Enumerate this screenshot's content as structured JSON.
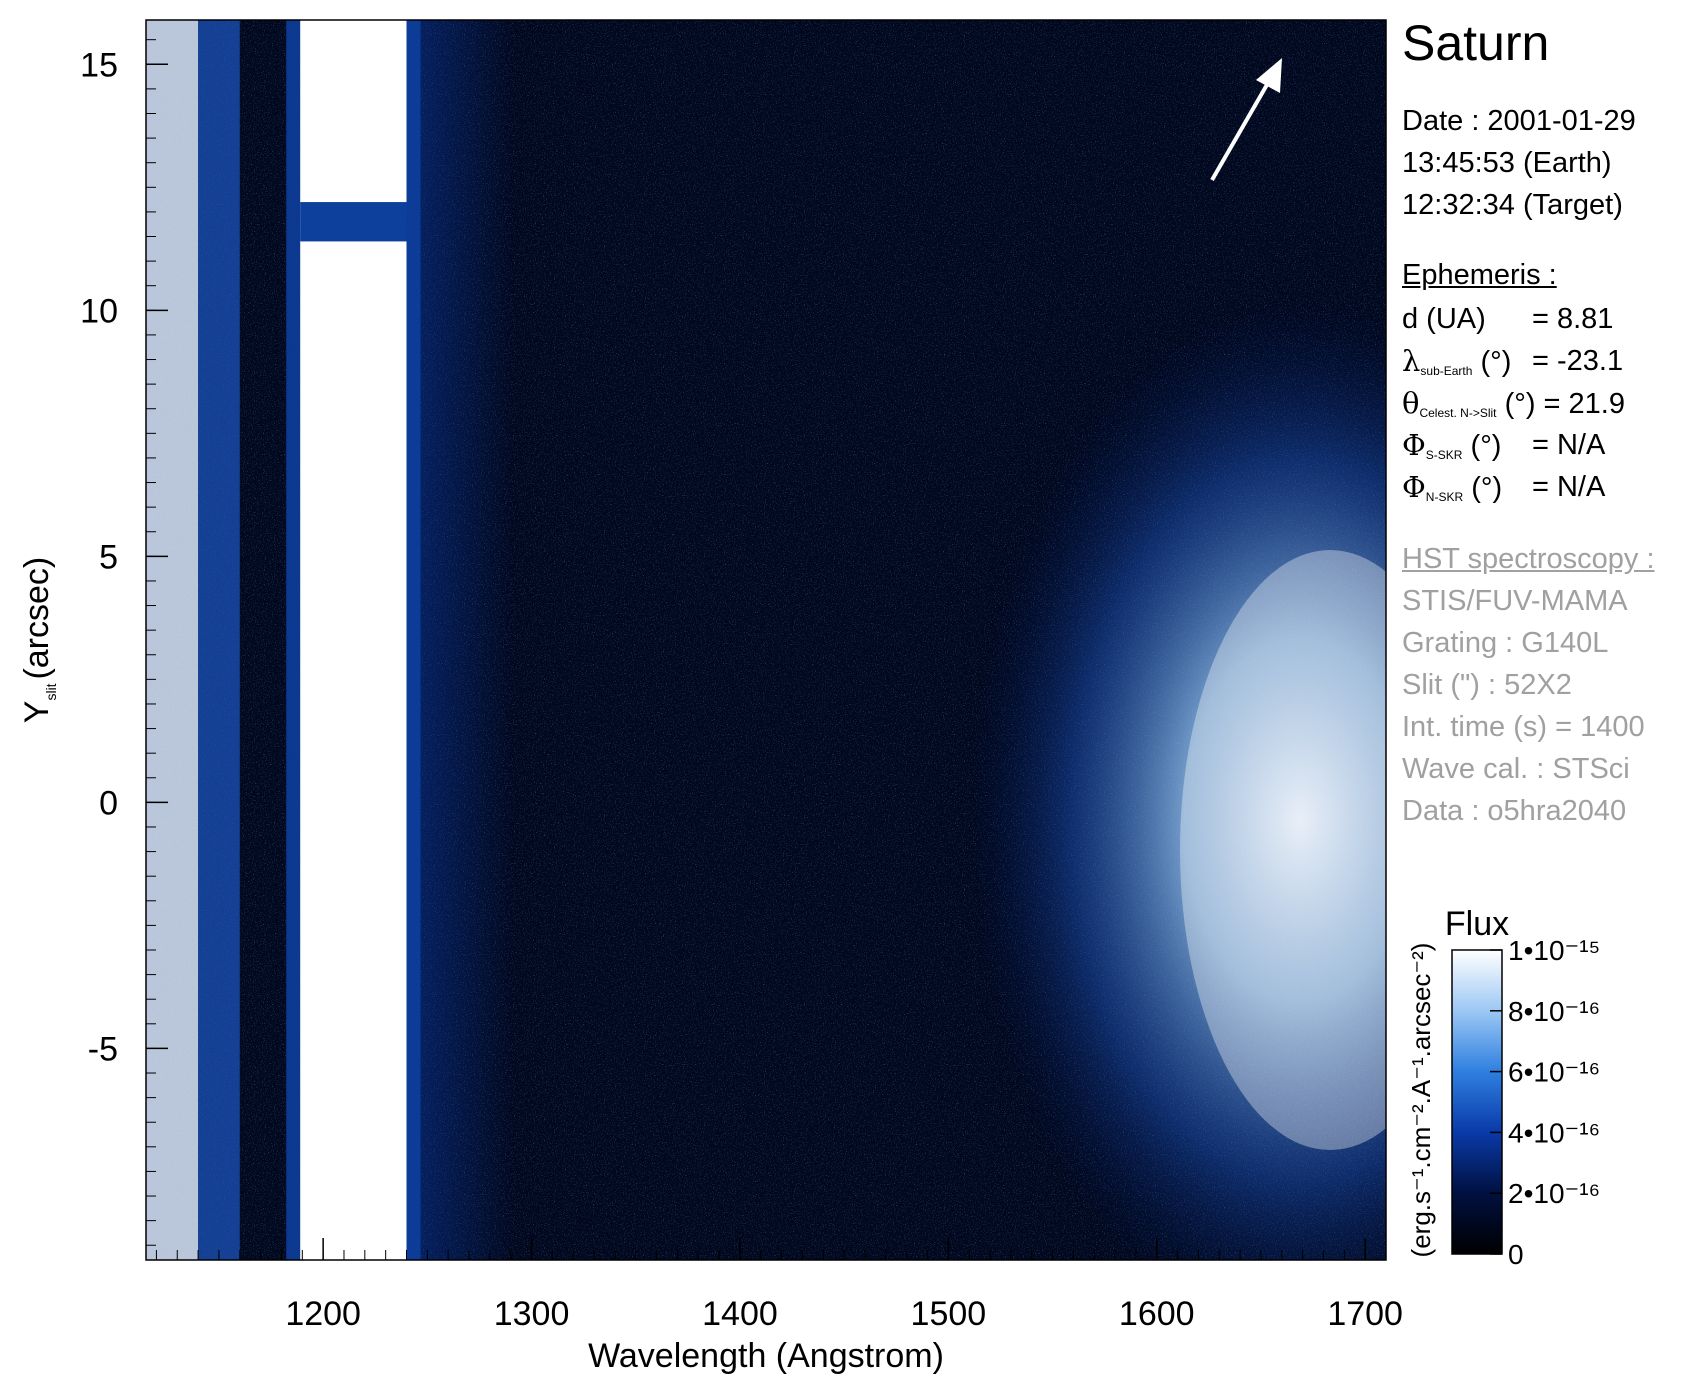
{
  "header": {
    "planet": "Saturn",
    "date_line": "Date : 2001-01-29",
    "earth_time": "13:45:53 (Earth)",
    "target_time": "12:32:34 (Target)"
  },
  "ephemeris": {
    "heading": "Ephemeris :",
    "d_label": "d (UA)",
    "d_value": "= 8.81",
    "lambda_symbol": "λ",
    "lambda_sub": "sub-Earth",
    "lambda_unit": "(°)",
    "lambda_value": "= -23.1",
    "theta_symbol": "θ",
    "theta_sub": "Celest. N->Slit",
    "theta_unit": "(°)",
    "theta_value": "= 21.9",
    "phi_s_symbol": "Φ",
    "phi_s_sub": "S-SKR",
    "phi_s_unit": "(°)",
    "phi_s_value": "= N/A",
    "phi_n_symbol": "Φ",
    "phi_n_sub": "N-SKR",
    "phi_n_unit": "(°)",
    "phi_n_value": "= N/A"
  },
  "spectroscopy": {
    "heading": "HST spectroscopy :",
    "instrument": "STIS/FUV-MAMA",
    "grating": "Grating : G140L",
    "slit": "Slit (\") : 52X2",
    "int_time": "Int. time (s) = 1400",
    "wave_cal": "Wave cal. : STSci",
    "data_id": "Data : o5hra2040"
  },
  "colorbar": {
    "title": "Flux",
    "unit_label": "(erg.s⁻¹.cm⁻².A⁻¹.arcsec⁻²)",
    "ticks": [
      {
        "value": 0,
        "label": "0"
      },
      {
        "value": 2e-16,
        "label": "2•10⁻¹⁶"
      },
      {
        "value": 4e-16,
        "label": "4•10⁻¹⁶"
      },
      {
        "value": 6e-16,
        "label": "6•10⁻¹⁶"
      },
      {
        "value": 8e-16,
        "label": "8•10⁻¹⁶"
      },
      {
        "value": 1e-15,
        "label": "1•10⁻¹⁵"
      }
    ],
    "colors": [
      "#000000",
      "#001040",
      "#0a3aa8",
      "#2f7fe0",
      "#9cc8f4",
      "#ffffff"
    ]
  },
  "chart_data": {
    "type": "heatmap",
    "title": "Saturn",
    "xlabel": "Wavelength (Angstrom)",
    "ylabel_main": "Y",
    "ylabel_sub": "slit",
    "ylabel_unit": "(arcsec)",
    "xlim": [
      1115,
      1710
    ],
    "ylim": [
      -9.3,
      15.9
    ],
    "x_ticks": [
      1200,
      1300,
      1400,
      1500,
      1600,
      1700
    ],
    "y_ticks": [
      -5,
      0,
      5,
      10,
      15
    ],
    "x_minor_step": 10,
    "y_minor_step": 0.5,
    "features": [
      {
        "name": "Lyman-alpha saturated band",
        "x_start": 1189,
        "x_end": 1240
      },
      {
        "name": "bright emission region",
        "x_start": 1540,
        "x_end": 1710,
        "y_start": -9.3,
        "y_end": 7.5
      }
    ],
    "north_arrow": {
      "direction_deg_from_vertical": 30
    }
  }
}
